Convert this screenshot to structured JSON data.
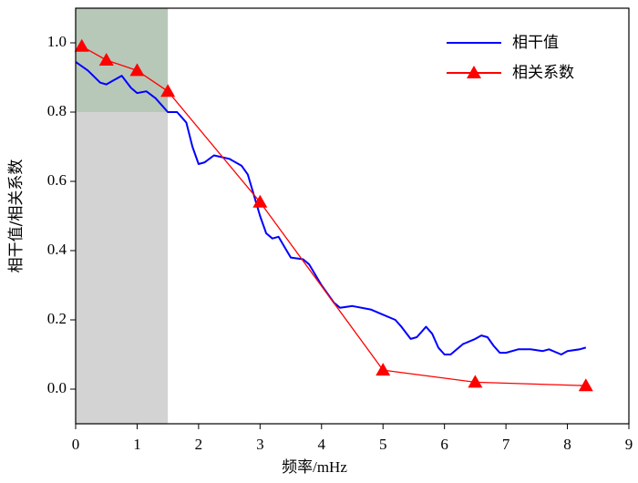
{
  "chart_data": {
    "type": "line",
    "xlabel": "频率/mHz",
    "ylabel": "相干值/相关系数",
    "xlim": [
      0,
      9
    ],
    "ylim": [
      -0.1,
      1.1
    ],
    "xticks": [
      0,
      1,
      2,
      3,
      4,
      5,
      6,
      7,
      8,
      9
    ],
    "yticks": [
      {
        "value": 0,
        "label": "0.0"
      },
      {
        "value": 0.2,
        "label": "0.2"
      },
      {
        "value": 0.4,
        "label": "0.4"
      },
      {
        "value": 0.6,
        "label": "0.6"
      },
      {
        "value": 0.8,
        "label": "0.8"
      },
      {
        "value": 1,
        "label": "1.0"
      }
    ],
    "legend": "upper right",
    "shaded_regions": [
      {
        "xlim": [
          0,
          1.5
        ],
        "ylim": [
          -0.1,
          0.8
        ],
        "color": "#d3d3d3"
      },
      {
        "xlim": [
          0,
          1.5
        ],
        "ylim": [
          0.8,
          1.1
        ],
        "color": "#b8c8b8"
      }
    ],
    "series": [
      {
        "name": "相干值",
        "color": "#0000ff",
        "marker": "none",
        "x": [
          0,
          0.2,
          0.4,
          0.5,
          0.6,
          0.75,
          0.9,
          1.0,
          1.15,
          1.3,
          1.5,
          1.65,
          1.8,
          1.9,
          2.0,
          2.1,
          2.25,
          2.5,
          2.7,
          2.8,
          2.9,
          3.0,
          3.1,
          3.2,
          3.3,
          3.4,
          3.5,
          3.7,
          3.8,
          3.9,
          4.0,
          4.2,
          4.3,
          4.5,
          4.8,
          5.0,
          5.2,
          5.3,
          5.45,
          5.55,
          5.7,
          5.8,
          5.9,
          6.0,
          6.1,
          6.3,
          6.5,
          6.6,
          6.7,
          6.8,
          6.9,
          7.0,
          7.2,
          7.4,
          7.6,
          7.7,
          7.9,
          8.0,
          8.2,
          8.3
        ],
        "values": [
          0.945,
          0.92,
          0.885,
          0.88,
          0.89,
          0.905,
          0.87,
          0.855,
          0.86,
          0.84,
          0.8,
          0.8,
          0.77,
          0.7,
          0.65,
          0.655,
          0.675,
          0.665,
          0.645,
          0.62,
          0.56,
          0.5,
          0.45,
          0.435,
          0.44,
          0.41,
          0.38,
          0.375,
          0.36,
          0.33,
          0.3,
          0.25,
          0.235,
          0.24,
          0.23,
          0.215,
          0.2,
          0.18,
          0.145,
          0.15,
          0.18,
          0.16,
          0.12,
          0.1,
          0.1,
          0.13,
          0.145,
          0.155,
          0.15,
          0.125,
          0.105,
          0.105,
          0.115,
          0.115,
          0.11,
          0.115,
          0.1,
          0.11,
          0.115,
          0.12
        ]
      },
      {
        "name": "相关系数",
        "color": "#ff0000",
        "marker": "triangle",
        "x": [
          0.1,
          0.5,
          1.0,
          1.5,
          3.0,
          5.0,
          6.5,
          8.3
        ],
        "values": [
          0.99,
          0.95,
          0.92,
          0.86,
          0.54,
          0.055,
          0.02,
          0.01
        ]
      }
    ]
  }
}
